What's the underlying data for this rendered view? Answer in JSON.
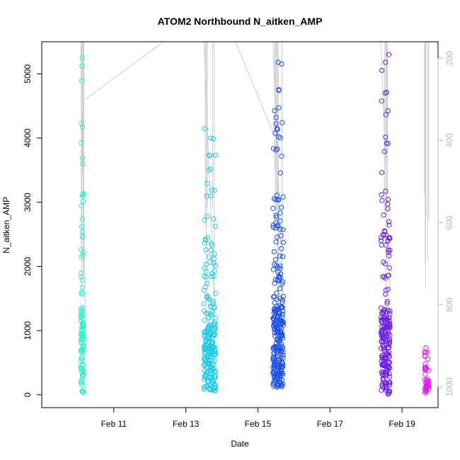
{
  "chart_data": {
    "type": "scatter",
    "title": "ATOM2 Northbound N_aitken_AMP",
    "xlabel": "Date",
    "ylabel": "N_aitken_AMP",
    "x_axis": {
      "range": [
        "2023-02-09T00:00",
        "2023-02-20T00:00"
      ],
      "ticks": [
        {
          "date": "2023-02-11",
          "label": "Feb 11"
        },
        {
          "date": "2023-02-13",
          "label": "Feb 13"
        },
        {
          "date": "2023-02-15",
          "label": "Feb 15"
        },
        {
          "date": "2023-02-17",
          "label": "Feb 17"
        },
        {
          "date": "2023-02-19",
          "label": "Feb 19"
        }
      ]
    },
    "y_axis": {
      "range": [
        -200,
        5500
      ],
      "ticks": [
        0,
        1000,
        2000,
        3000,
        4000,
        5000
      ]
    },
    "right_axis": {
      "quantity": "altitude profile (reversed)",
      "range_top": 160,
      "range_bottom": 1050,
      "ticks": [
        200,
        400,
        600,
        800,
        1000
      ],
      "line_color": "#cccccc"
    },
    "point_style": "open circle",
    "grid": false,
    "clusters": [
      {
        "start": "2023-02-10T02:00",
        "end": "2023-02-10T04:00",
        "color": "#2af5c6",
        "n": 110,
        "ymax": 5250,
        "ymin": 40
      },
      {
        "start": "2023-02-13T12:00",
        "end": "2023-02-13T20:00",
        "color": "#1ecbe8",
        "n": 230,
        "ymax": 4150,
        "ymin": 60
      },
      {
        "start": "2023-02-15T10:00",
        "end": "2023-02-15T17:00",
        "color": "#1a4ef0",
        "n": 260,
        "ymax": 5180,
        "ymin": 120
      },
      {
        "start": "2023-02-18T10:00",
        "end": "2023-02-18T16:00",
        "color": "#6b1cf0",
        "n": 210,
        "ymax": 5300,
        "ymin": 10
      },
      {
        "start": "2023-02-19T15:00",
        "end": "2023-02-19T18:00",
        "color": "#e21df0",
        "n": 45,
        "ymax": 730,
        "ymin": 30
      }
    ],
    "altitude_segments": [
      {
        "x": [
          "2023-02-10T02:00",
          "2023-02-10T05:00"
        ],
        "alt": [
          170,
          820
        ]
      },
      {
        "x": [
          "2023-02-10T05:00",
          "2023-02-12T09:00"
        ],
        "alt": [
          300,
          160
        ]
      },
      {
        "x": [
          "2023-02-14T09:00",
          "2023-02-15T10:00"
        ],
        "alt": [
          160,
          380
        ]
      },
      {
        "x": [
          "2023-02-13T12:00",
          "2023-02-13T20:00"
        ],
        "alt": [
          160,
          880
        ]
      },
      {
        "x": [
          "2023-02-15T10:00",
          "2023-02-15T17:00"
        ],
        "alt": [
          160,
          820
        ]
      },
      {
        "x": [
          "2023-02-18T10:00",
          "2023-02-18T16:00"
        ],
        "alt": [
          160,
          760
        ]
      },
      {
        "x": [
          "2023-02-19T17:00",
          "2023-02-19T17:00"
        ],
        "alt": [
          160,
          690
        ]
      }
    ]
  }
}
